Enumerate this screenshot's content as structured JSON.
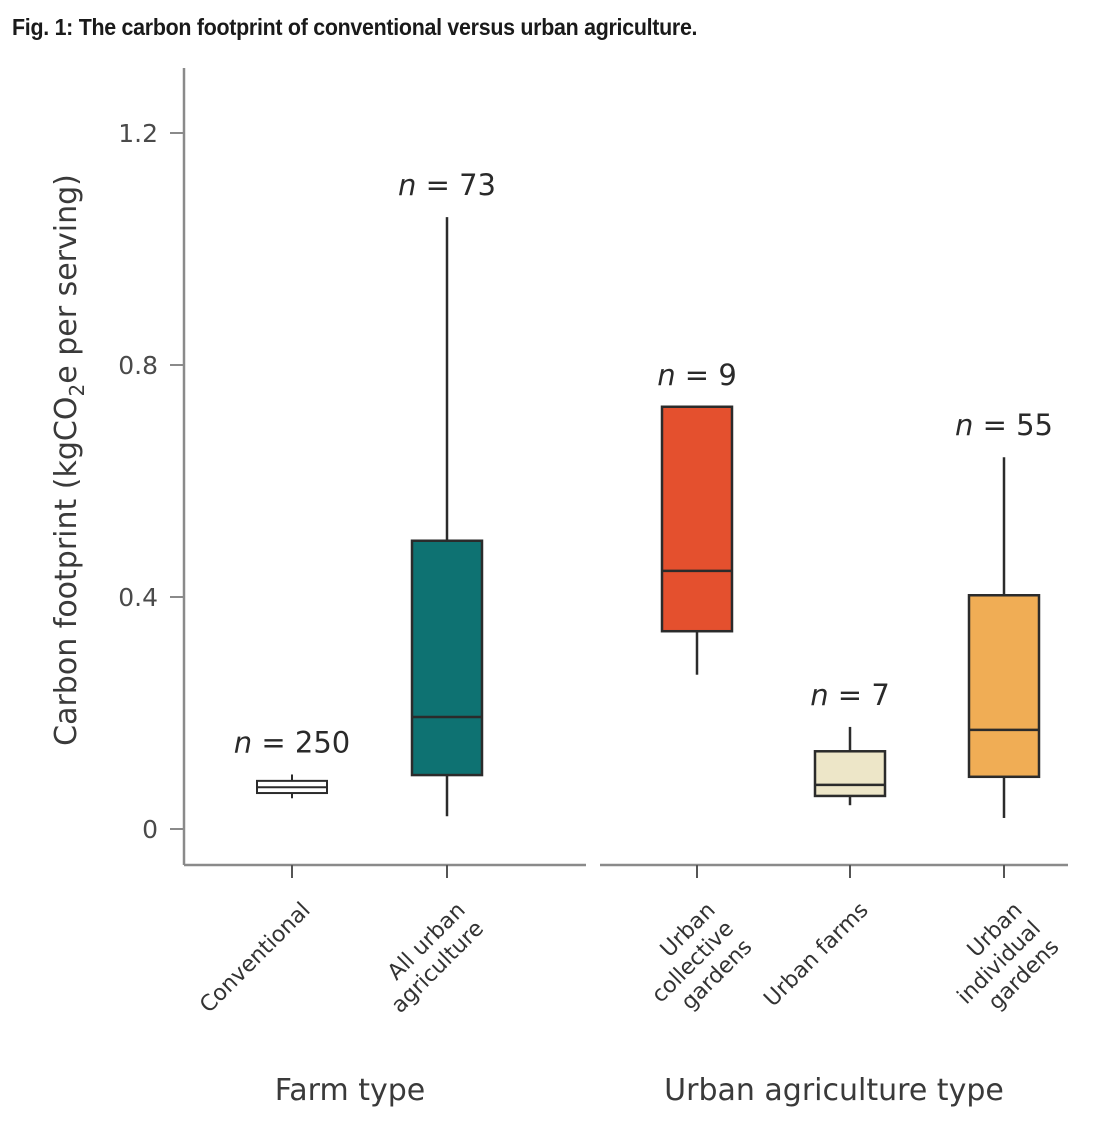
{
  "figure": {
    "title": "Fig. 1: The carbon footprint of conventional versus urban agriculture."
  },
  "chart_data": {
    "type": "boxplot",
    "title": "Fig. 1: The carbon footprint of conventional versus urban agriculture.",
    "ylabel": "Carbon footprint (kgCO2e per serving)",
    "ylabel_parts": {
      "main": "Carbon footprint (kgCO",
      "sub": "2",
      "tail": "e per serving)"
    },
    "ylim": [
      0,
      1.3
    ],
    "yticks": [
      0,
      0.4,
      0.8,
      1.2
    ],
    "ytick_labels": [
      "0",
      "0.4",
      "0.8",
      "1.2"
    ],
    "grid": false,
    "panels": [
      {
        "xlabel": "Farm type",
        "categories": [
          {
            "label_lines": [
              "Conventional"
            ],
            "n_label": "n = 250",
            "n_prefix": "n",
            "n_value": "= 250",
            "color": "#ffffff",
            "whisker_low": 0.053,
            "q1": 0.062,
            "median": 0.072,
            "q3": 0.083,
            "whisker_high": 0.094
          },
          {
            "label_lines": [
              "All urban",
              "agriculture"
            ],
            "n_label": "n = 73",
            "n_prefix": "n",
            "n_value": "= 73",
            "color": "#0e7272",
            "whisker_low": 0.022,
            "q1": 0.093,
            "median": 0.193,
            "q3": 0.497,
            "whisker_high": 1.055
          }
        ]
      },
      {
        "xlabel": "Urban agriculture type",
        "categories": [
          {
            "label_lines": [
              "Urban",
              "collective",
              "gardens"
            ],
            "n_label": "n = 9",
            "n_prefix": "n",
            "n_value": "= 9",
            "color": "#e4502e",
            "whisker_low": 0.266,
            "q1": 0.341,
            "median": 0.445,
            "q3": 0.728,
            "whisker_high": 0.728
          },
          {
            "label_lines": [
              "Urban farms"
            ],
            "n_label": "n = 7",
            "n_prefix": "n",
            "n_value": "= 7",
            "color": "#ede6c8",
            "whisker_low": 0.041,
            "q1": 0.057,
            "median": 0.076,
            "q3": 0.134,
            "whisker_high": 0.176
          },
          {
            "label_lines": [
              "Urban",
              "individual",
              "gardens"
            ],
            "n_label": "n = 55",
            "n_prefix": "n",
            "n_value": "= 55",
            "color": "#f0ad55",
            "whisker_low": 0.019,
            "q1": 0.09,
            "median": 0.171,
            "q3": 0.403,
            "whisker_high": 0.641
          }
        ]
      }
    ]
  },
  "colors": {
    "axis": "#8a8a8a",
    "box_stroke": "#2b2b2b",
    "text": "#333333"
  }
}
